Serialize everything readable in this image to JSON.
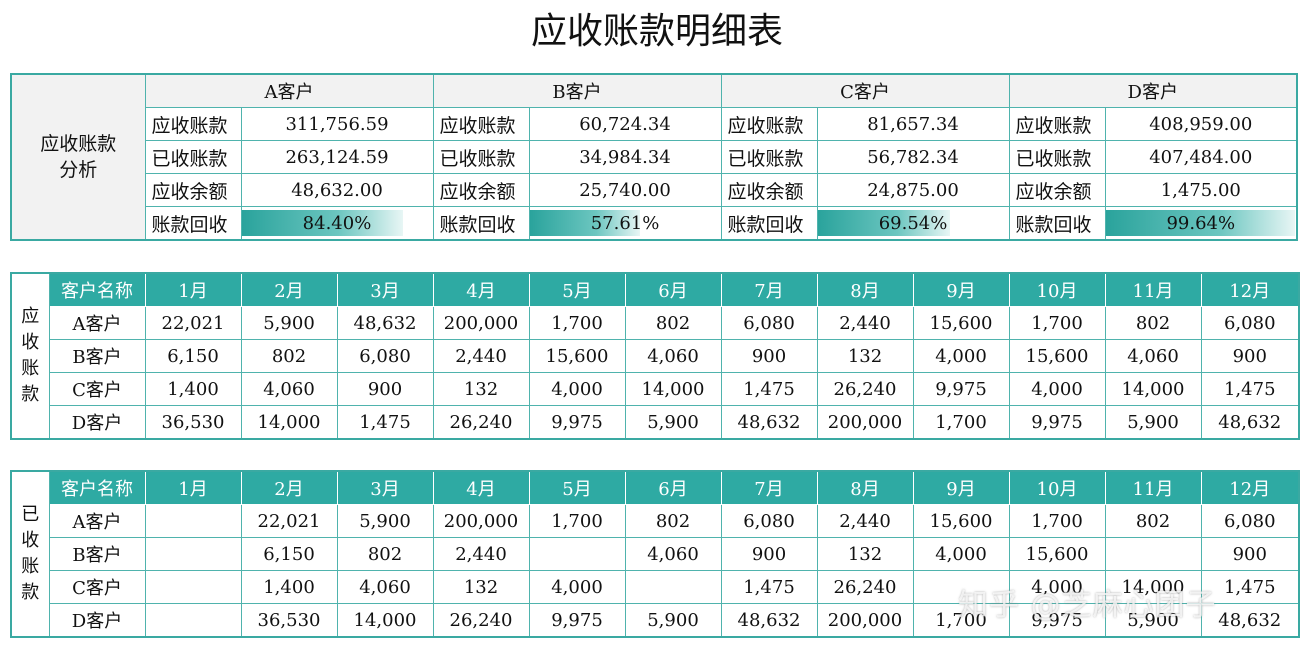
{
  "title": "应收账款明细表",
  "summary": {
    "side_label_1": "应收账款",
    "side_label_2": "分析",
    "row_labels": [
      "应收账款",
      "已收账款",
      "应收余额",
      "账款回收"
    ],
    "customers": [
      {
        "name": "A客户",
        "receivable": "311,756.59",
        "received": "263,124.59",
        "balance": "48,632.00",
        "recovery": "84.40%",
        "recovery_value": 0.844
      },
      {
        "name": "B客户",
        "receivable": "60,724.34",
        "received": "34,984.34",
        "balance": "25,740.00",
        "recovery": "57.61%",
        "recovery_value": 0.5761
      },
      {
        "name": "C客户",
        "receivable": "81,657.34",
        "received": "56,782.34",
        "balance": "24,875.00",
        "recovery": "69.54%",
        "recovery_value": 0.6954
      },
      {
        "name": "D客户",
        "receivable": "408,959.00",
        "received": "407,484.00",
        "balance": "1,475.00",
        "recovery": "99.64%",
        "recovery_value": 0.9964
      }
    ]
  },
  "months": [
    "1月",
    "2月",
    "3月",
    "4月",
    "5月",
    "6月",
    "7月",
    "8月",
    "9月",
    "10月",
    "11月",
    "12月"
  ],
  "name_header": "客户名称",
  "receivable_table": {
    "side_label": [
      "应",
      "收",
      "账",
      "款"
    ],
    "rows": [
      {
        "name": "A客户",
        "values": [
          "22,021",
          "5,900",
          "48,632",
          "200,000",
          "1,700",
          "802",
          "6,080",
          "2,440",
          "15,600",
          "1,700",
          "802",
          "6,080"
        ]
      },
      {
        "name": "B客户",
        "values": [
          "6,150",
          "802",
          "6,080",
          "2,440",
          "15,600",
          "4,060",
          "900",
          "132",
          "4,000",
          "15,600",
          "4,060",
          "900"
        ]
      },
      {
        "name": "C客户",
        "values": [
          "1,400",
          "4,060",
          "900",
          "132",
          "4,000",
          "14,000",
          "1,475",
          "26,240",
          "9,975",
          "4,000",
          "14,000",
          "1,475"
        ]
      },
      {
        "name": "D客户",
        "values": [
          "36,530",
          "14,000",
          "1,475",
          "26,240",
          "9,975",
          "5,900",
          "48,632",
          "200,000",
          "1,700",
          "9,975",
          "5,900",
          "48,632"
        ]
      }
    ]
  },
  "received_table": {
    "side_label": [
      "已",
      "收",
      "账",
      "款"
    ],
    "rows": [
      {
        "name": "A客户",
        "values": [
          "",
          "22,021",
          "5,900",
          "200,000",
          "1,700",
          "802",
          "6,080",
          "2,440",
          "15,600",
          "1,700",
          "802",
          "6,080"
        ]
      },
      {
        "name": "B客户",
        "values": [
          "",
          "6,150",
          "802",
          "2,440",
          "",
          "4,060",
          "900",
          "132",
          "4,000",
          "15,600",
          "",
          "900"
        ]
      },
      {
        "name": "C客户",
        "values": [
          "",
          "1,400",
          "4,060",
          "132",
          "4,000",
          "",
          "1,475",
          "26,240",
          "",
          "4,000",
          "14,000",
          "1,475"
        ]
      },
      {
        "name": "D客户",
        "values": [
          "",
          "36,530",
          "14,000",
          "26,240",
          "9,975",
          "5,900",
          "48,632",
          "200,000",
          "1,700",
          "9,975",
          "5,900",
          "48,632"
        ]
      }
    ]
  },
  "watermark": "知乎 @芝麻心团子",
  "colors": {
    "accent": "#2eaaa3",
    "border": "#3aa9a2",
    "header_bg": "#f2f2f2"
  }
}
